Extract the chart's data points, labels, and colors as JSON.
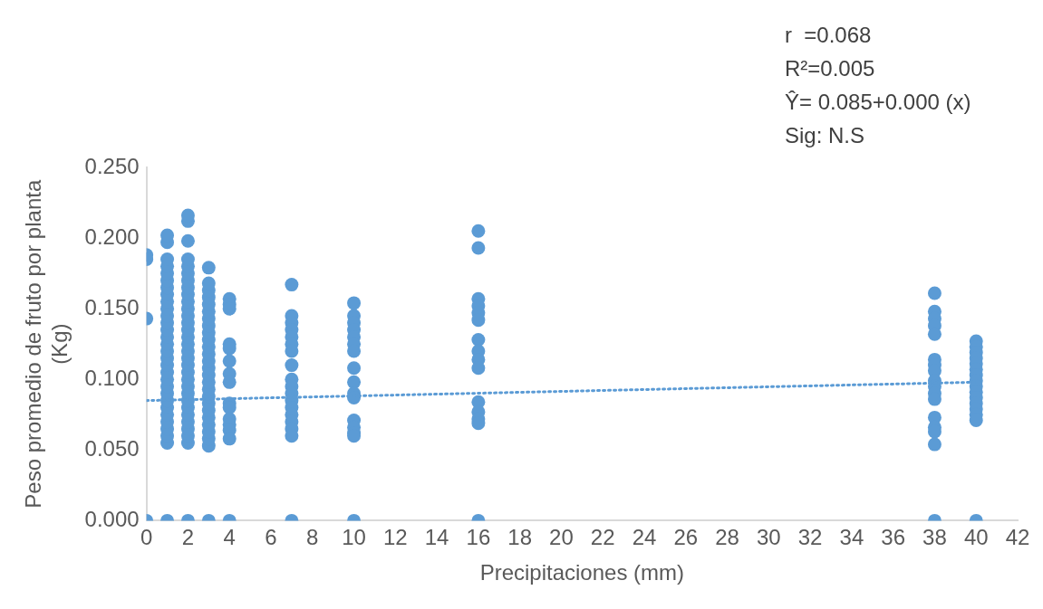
{
  "chart_data": {
    "type": "scatter",
    "xlabel": "Precipitaciones (mm)",
    "ylabel": "Peso promedio de fruto por planta (Kg)",
    "annotations": [
      "r  =0.068",
      "R²=0.005",
      "Ŷ= 0.085+0.000 (x)",
      "Sig: N.S"
    ],
    "xlim": [
      0,
      42
    ],
    "xticks": [
      0,
      2,
      4,
      6,
      8,
      10,
      12,
      14,
      16,
      18,
      20,
      22,
      24,
      26,
      28,
      30,
      32,
      34,
      36,
      38,
      40,
      42
    ],
    "ylim": [
      0,
      0.25
    ],
    "yticks": [
      {
        "value": 0,
        "label": "0.000"
      },
      {
        "value": 0.05,
        "label": "0.050"
      },
      {
        "value": 0.1,
        "label": "0.100"
      },
      {
        "value": 0.15,
        "label": "0.150"
      },
      {
        "value": 0.2,
        "label": "0.200"
      },
      {
        "value": 0.25,
        "label": "0.250"
      }
    ],
    "grid": false,
    "legend": false,
    "marker": "circle",
    "series": [
      {
        "color": "#5b9bd5",
        "x": [
          0,
          0,
          0,
          0,
          1,
          1,
          1,
          1,
          1,
          1,
          1,
          1,
          1,
          1,
          1,
          1,
          1,
          1,
          1,
          1,
          1,
          1,
          1,
          1,
          1,
          1,
          1,
          1,
          1,
          1,
          1,
          1,
          1,
          1,
          2,
          2,
          2,
          2,
          2,
          2,
          2,
          2,
          2,
          2,
          2,
          2,
          2,
          2,
          2,
          2,
          2,
          2,
          2,
          2,
          2,
          2,
          2,
          2,
          2,
          2,
          2,
          2,
          2,
          2,
          2,
          3,
          3,
          3,
          3,
          3,
          3,
          3,
          3,
          3,
          3,
          3,
          3,
          3,
          3,
          3,
          3,
          3,
          3,
          3,
          3,
          3,
          3,
          3,
          3,
          3,
          3,
          4,
          4,
          4,
          4,
          4,
          4,
          4,
          4,
          4,
          4,
          4,
          4,
          4,
          4,
          4,
          7,
          7,
          7,
          7,
          7,
          7,
          7,
          7,
          7,
          7,
          7,
          7,
          7,
          7,
          7,
          7,
          7,
          7,
          10,
          10,
          10,
          10,
          10,
          10,
          10,
          10,
          10,
          10,
          10,
          10,
          10,
          10,
          10,
          10,
          16,
          16,
          16,
          16,
          16,
          16,
          16,
          16,
          16,
          16,
          16,
          16,
          16,
          16,
          16,
          38,
          38,
          38,
          38,
          38,
          38,
          38,
          38,
          38,
          38,
          38,
          38,
          38,
          38,
          38,
          38,
          38,
          40,
          40,
          40,
          40,
          40,
          40,
          40,
          40,
          40,
          40,
          40,
          40,
          40,
          40,
          40,
          40
        ],
        "values": [
          0.188,
          0.185,
          0.143,
          0,
          0.055,
          0.06,
          0.065,
          0.07,
          0.075,
          0.08,
          0.085,
          0.09,
          0.095,
          0.1,
          0.105,
          0.11,
          0.115,
          0.12,
          0.125,
          0.13,
          0.135,
          0.14,
          0.145,
          0.15,
          0.155,
          0.16,
          0.165,
          0.17,
          0.175,
          0.18,
          0.185,
          0.197,
          0.202,
          0,
          0.055,
          0.06,
          0.065,
          0.07,
          0.075,
          0.08,
          0.085,
          0.09,
          0.095,
          0.1,
          0.105,
          0.11,
          0.115,
          0.12,
          0.125,
          0.13,
          0.135,
          0.14,
          0.145,
          0.15,
          0.155,
          0.16,
          0.165,
          0.17,
          0.175,
          0.18,
          0.185,
          0.198,
          0.212,
          0.216,
          0,
          0,
          0.053,
          0.058,
          0.063,
          0.068,
          0.073,
          0.078,
          0.083,
          0.088,
          0.093,
          0.098,
          0.103,
          0.108,
          0.113,
          0.118,
          0.123,
          0.128,
          0.133,
          0.138,
          0.143,
          0.148,
          0.153,
          0.158,
          0.163,
          0.168,
          0.179,
          0.157,
          0.153,
          0.15,
          0.125,
          0.122,
          0.113,
          0.104,
          0.098,
          0.083,
          0.08,
          0.072,
          0.068,
          0.064,
          0.058,
          0,
          0.167,
          0.145,
          0.14,
          0.135,
          0.13,
          0.125,
          0.12,
          0.11,
          0.1,
          0.095,
          0.09,
          0.085,
          0.08,
          0.075,
          0.07,
          0.065,
          0.06,
          0,
          0.154,
          0.145,
          0.14,
          0.135,
          0.13,
          0.125,
          0.12,
          0.108,
          0.098,
          0.09,
          0.087,
          0.071,
          0.066,
          0.062,
          0.06,
          0,
          0.205,
          0.193,
          0.157,
          0.152,
          0.147,
          0.142,
          0.128,
          0.12,
          0.114,
          0.108,
          0.084,
          0.077,
          0.072,
          0.069,
          0,
          0.161,
          0.148,
          0.143,
          0.138,
          0.132,
          0.114,
          0.11,
          0.106,
          0.099,
          0.095,
          0.09,
          0.086,
          0.073,
          0.066,
          0.063,
          0.054,
          0,
          0.127,
          0.123,
          0.119,
          0.115,
          0.111,
          0.107,
          0.103,
          0.099,
          0.095,
          0.091,
          0.087,
          0.083,
          0.079,
          0.075,
          0.071,
          0
        ]
      },
      {
        "type": "line",
        "color": "#5b9bd5",
        "line_style": "dotted",
        "marker": "none",
        "x": [
          0,
          40
        ],
        "values": [
          0.085,
          0.098
        ]
      }
    ]
  }
}
